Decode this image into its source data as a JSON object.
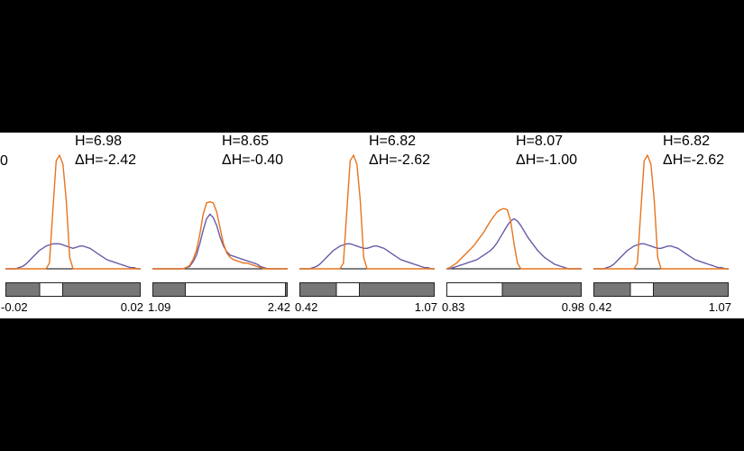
{
  "colors": {
    "background": "#000000",
    "panel_background": "#ffffff",
    "series_a": "#e8741e",
    "series_b": "#6a5aa8",
    "bar_fill": "#777777",
    "bar_border": "#222222",
    "window_fill": "#ffffff"
  },
  "edge_fragment": "0",
  "chart_data": [
    {
      "type": "line",
      "stats": {
        "h": "H=6.98",
        "dh": "ΔH=-2.42"
      },
      "range": {
        "min": "-0.02",
        "max": "0.02"
      },
      "window": [
        0.25,
        0.42
      ],
      "series": [
        {
          "color": "#e8741e",
          "values": [
            0,
            0,
            0,
            0,
            0,
            0,
            0,
            0,
            0,
            0,
            0,
            0,
            0,
            0.05,
            0.5,
            0.95,
            1.0,
            0.92,
            0.6,
            0.1,
            0,
            0,
            0,
            0,
            0,
            0,
            0,
            0,
            0,
            0,
            0,
            0,
            0,
            0,
            0,
            0,
            0,
            0,
            0,
            0,
            0
          ]
        },
        {
          "color": "#6a5aa8",
          "values": [
            0,
            0,
            0,
            0,
            0.01,
            0.02,
            0.04,
            0.07,
            0.1,
            0.13,
            0.16,
            0.18,
            0.2,
            0.21,
            0.22,
            0.22,
            0.22,
            0.21,
            0.2,
            0.19,
            0.18,
            0.19,
            0.2,
            0.2,
            0.19,
            0.18,
            0.16,
            0.14,
            0.12,
            0.1,
            0.08,
            0.07,
            0.06,
            0.05,
            0.04,
            0.03,
            0.02,
            0.01,
            0.01,
            0,
            0
          ]
        }
      ]
    },
    {
      "type": "line",
      "stats": {
        "h": "H=8.65",
        "dh": "ΔH=-0.40"
      },
      "range": {
        "min": "1.09",
        "max": "2.42"
      },
      "window": [
        0.24,
        0.98
      ],
      "series": [
        {
          "color": "#e8741e",
          "values": [
            0,
            0,
            0,
            0,
            0,
            0,
            0,
            0,
            0,
            0,
            0.01,
            0.03,
            0.08,
            0.16,
            0.3,
            0.48,
            0.58,
            0.59,
            0.58,
            0.5,
            0.36,
            0.22,
            0.14,
            0.1,
            0.08,
            0.07,
            0.06,
            0.05,
            0.05,
            0.04,
            0.03,
            0.02,
            0.01,
            0,
            0,
            0,
            0,
            0,
            0,
            0,
            0
          ]
        },
        {
          "color": "#6a5aa8",
          "values": [
            0,
            0,
            0,
            0,
            0,
            0,
            0,
            0,
            0,
            0,
            0.01,
            0.02,
            0.06,
            0.12,
            0.22,
            0.34,
            0.44,
            0.48,
            0.45,
            0.38,
            0.28,
            0.2,
            0.15,
            0.12,
            0.11,
            0.1,
            0.09,
            0.08,
            0.07,
            0.06,
            0.05,
            0.04,
            0.02,
            0.01,
            0,
            0,
            0,
            0,
            0,
            0,
            0
          ]
        }
      ]
    },
    {
      "type": "line",
      "stats": {
        "h": "H=6.82",
        "dh": "ΔH=-2.62"
      },
      "range": {
        "min": "0.42",
        "max": "1.07"
      },
      "window": [
        0.27,
        0.44
      ],
      "series": [
        {
          "color": "#e8741e",
          "values": [
            0,
            0,
            0,
            0,
            0,
            0,
            0,
            0,
            0,
            0,
            0,
            0,
            0,
            0.05,
            0.5,
            0.95,
            1.0,
            0.92,
            0.6,
            0.1,
            0,
            0,
            0,
            0,
            0,
            0,
            0,
            0,
            0,
            0,
            0,
            0,
            0,
            0,
            0,
            0,
            0,
            0,
            0,
            0,
            0
          ]
        },
        {
          "color": "#6a5aa8",
          "values": [
            0,
            0,
            0,
            0,
            0.01,
            0.02,
            0.04,
            0.07,
            0.1,
            0.13,
            0.16,
            0.18,
            0.2,
            0.21,
            0.22,
            0.22,
            0.21,
            0.2,
            0.19,
            0.18,
            0.18,
            0.19,
            0.2,
            0.2,
            0.19,
            0.18,
            0.16,
            0.14,
            0.12,
            0.1,
            0.08,
            0.07,
            0.06,
            0.05,
            0.04,
            0.03,
            0.02,
            0.01,
            0.01,
            0,
            0
          ]
        }
      ]
    },
    {
      "type": "line",
      "stats": {
        "h": "H=8.07",
        "dh": "ΔH=-1.00"
      },
      "range": {
        "min": "0.83",
        "max": "0.98"
      },
      "window": [
        0.0,
        0.41
      ],
      "series": [
        {
          "color": "#e8741e",
          "values": [
            0,
            0.01,
            0.03,
            0.05,
            0.08,
            0.11,
            0.14,
            0.17,
            0.2,
            0.24,
            0.28,
            0.32,
            0.37,
            0.42,
            0.46,
            0.5,
            0.52,
            0.53,
            0.52,
            0.42,
            0.22,
            0.05,
            0,
            0,
            0,
            0,
            0,
            0,
            0,
            0,
            0,
            0,
            0,
            0,
            0,
            0,
            0,
            0,
            0,
            0,
            0
          ]
        },
        {
          "color": "#6a5aa8",
          "values": [
            0,
            0,
            0.01,
            0.02,
            0.03,
            0.04,
            0.05,
            0.06,
            0.07,
            0.08,
            0.1,
            0.12,
            0.14,
            0.16,
            0.19,
            0.23,
            0.28,
            0.33,
            0.38,
            0.42,
            0.44,
            0.42,
            0.38,
            0.33,
            0.28,
            0.24,
            0.2,
            0.16,
            0.13,
            0.1,
            0.08,
            0.06,
            0.04,
            0.03,
            0.02,
            0.01,
            0,
            0,
            0,
            0,
            0
          ]
        }
      ]
    },
    {
      "type": "line",
      "stats": {
        "h": "H=6.82",
        "dh": "ΔH=-2.62"
      },
      "range": {
        "min": "0.42",
        "max": "1.07"
      },
      "window": [
        0.27,
        0.44
      ],
      "series": [
        {
          "color": "#e8741e",
          "values": [
            0,
            0,
            0,
            0,
            0,
            0,
            0,
            0,
            0,
            0,
            0,
            0,
            0,
            0.05,
            0.5,
            0.95,
            1.0,
            0.92,
            0.6,
            0.1,
            0,
            0,
            0,
            0,
            0,
            0,
            0,
            0,
            0,
            0,
            0,
            0,
            0,
            0,
            0,
            0,
            0,
            0,
            0,
            0,
            0
          ]
        },
        {
          "color": "#6a5aa8",
          "values": [
            0,
            0,
            0,
            0,
            0.01,
            0.02,
            0.04,
            0.07,
            0.1,
            0.13,
            0.16,
            0.18,
            0.2,
            0.21,
            0.22,
            0.22,
            0.21,
            0.2,
            0.19,
            0.18,
            0.18,
            0.19,
            0.2,
            0.2,
            0.19,
            0.18,
            0.16,
            0.14,
            0.12,
            0.1,
            0.08,
            0.07,
            0.06,
            0.05,
            0.04,
            0.03,
            0.02,
            0.01,
            0.01,
            0,
            0
          ]
        }
      ]
    }
  ]
}
